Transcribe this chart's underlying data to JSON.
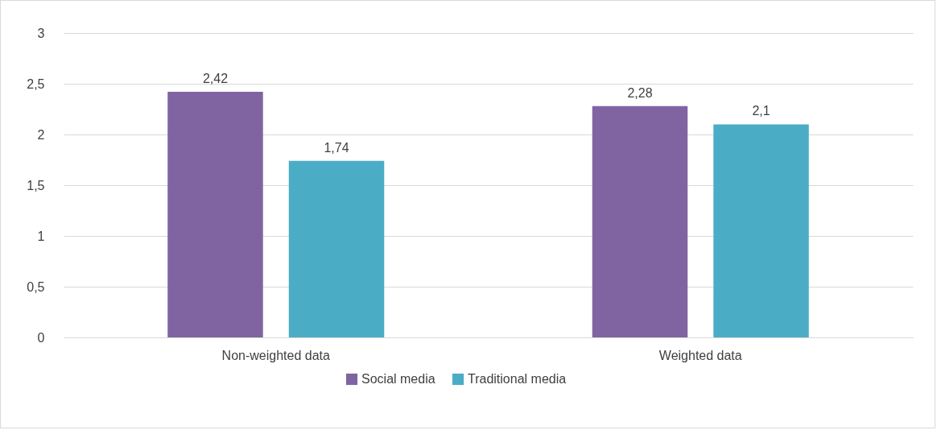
{
  "chart_data": {
    "type": "bar",
    "categories": [
      "Non-weighted data",
      "Weighted data"
    ],
    "series": [
      {
        "name": "Social media",
        "color": "#8064a2",
        "values": [
          2.42,
          2.28
        ],
        "value_labels": [
          "2,42",
          "2,28"
        ]
      },
      {
        "name": "Traditional media",
        "color": "#4bacc6",
        "values": [
          1.74,
          2.1
        ],
        "value_labels": [
          "1,74",
          "2,1"
        ]
      }
    ],
    "ylim": [
      0,
      3
    ],
    "yticks": [
      0,
      {
        "value": 0.5,
        "label": "0,5"
      },
      1,
      {
        "value": 1.5,
        "label": "1,5"
      },
      2,
      {
        "value": 2.5,
        "label": "2,5"
      },
      3
    ],
    "grid": "y",
    "legend": "bottom"
  }
}
